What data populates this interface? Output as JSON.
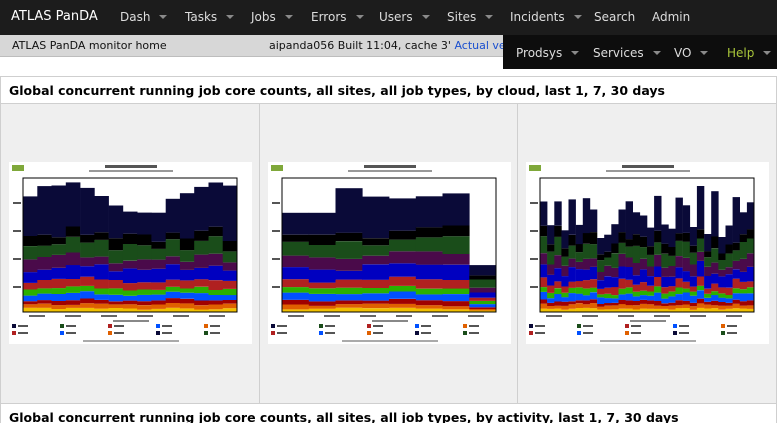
{
  "nav": {
    "brand": "ATLAS PanDA",
    "items": [
      {
        "label": "Dash",
        "dropdown": true
      },
      {
        "label": "Tasks",
        "dropdown": true
      },
      {
        "label": "Jobs",
        "dropdown": true
      },
      {
        "label": "Errors",
        "dropdown": true
      },
      {
        "label": "Users",
        "dropdown": true
      },
      {
        "label": "Sites",
        "dropdown": true
      },
      {
        "label": "Incidents",
        "dropdown": true
      },
      {
        "label": "Search",
        "dropdown": false
      },
      {
        "label": "Admin",
        "dropdown": false
      }
    ],
    "items2": [
      {
        "label": "Prodsys",
        "dropdown": true
      },
      {
        "label": "Services",
        "dropdown": true
      },
      {
        "label": "VO",
        "dropdown": true
      },
      {
        "label": "Help",
        "dropdown": true
      }
    ]
  },
  "subbar": {
    "home": "ATLAS PanDA monitor home",
    "build": "aipanda056 Built 11:04, cache 3'",
    "actual_version": "Actual version"
  },
  "panels": [
    {
      "title": "Global concurrent running job core counts, all sites, all job types, by cloud, last 1, 7, 30 days"
    },
    {
      "title": "Global concurrent running job core counts, all sites, all job types, by activity, last 1, 7, 30 days"
    }
  ],
  "colors": {
    "stack": [
      "#f0c000",
      "#e06000",
      "#a00000",
      "#0050ff",
      "#2ab000",
      "#b02020",
      "#0000c0",
      "#4a0a4a",
      "#1a4d1a",
      "#000000",
      "#0a0a38"
    ],
    "nav_bg": "#1c1c1c",
    "help": "#a9c63a",
    "link": "#1a4fcf"
  }
}
